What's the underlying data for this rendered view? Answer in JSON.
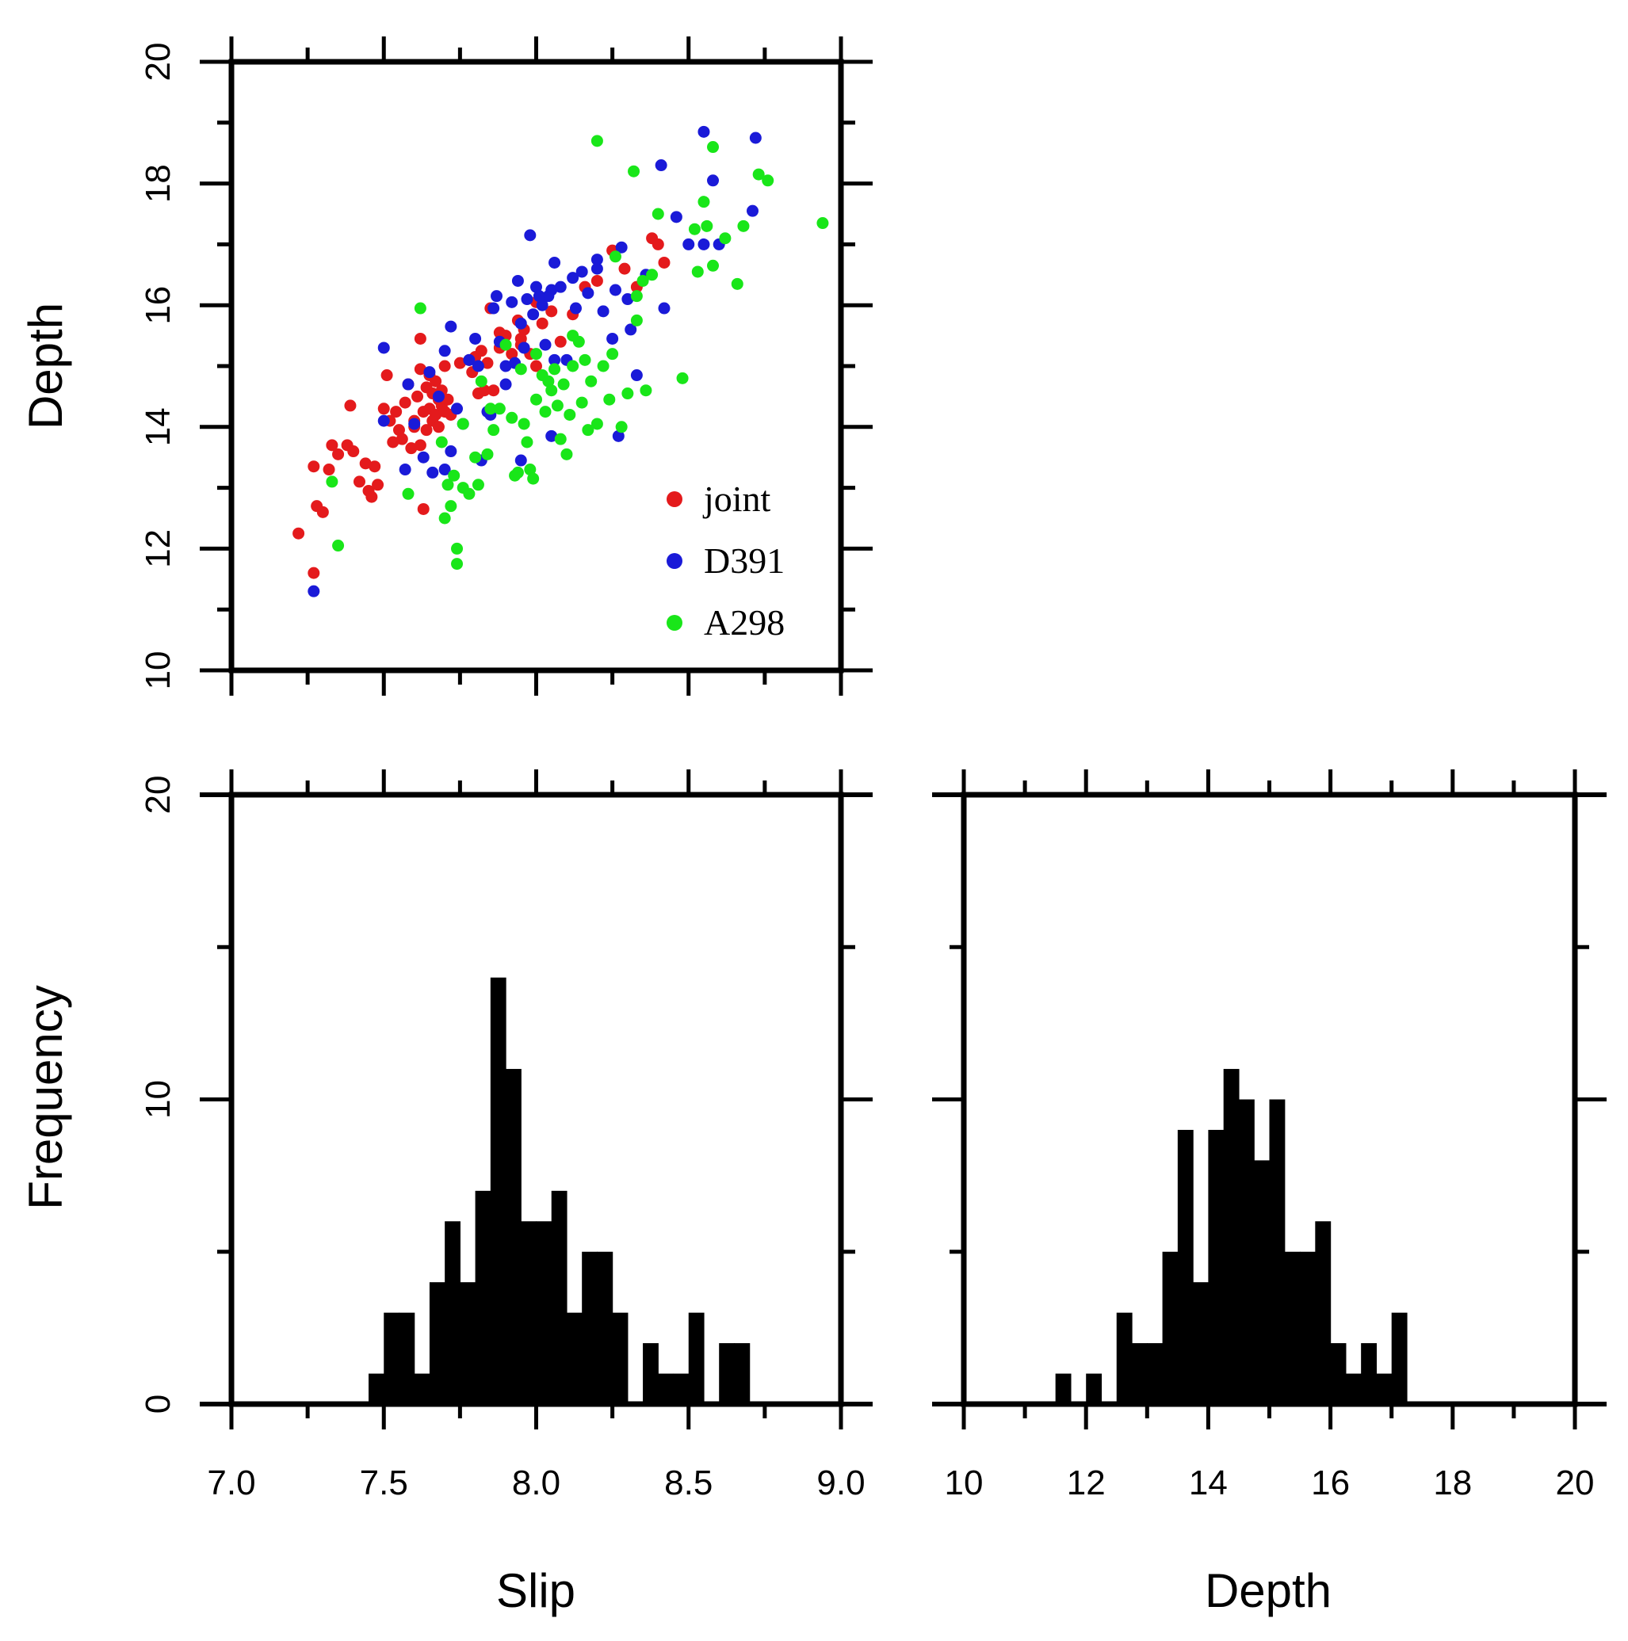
{
  "chart_data": [
    {
      "id": "scatter",
      "type": "scatter",
      "xlim": [
        7.0,
        9.0
      ],
      "ylim": [
        10,
        20
      ],
      "ylabel": "Depth",
      "yticks": [
        10,
        12,
        14,
        16,
        18,
        20
      ],
      "legend": {
        "placement": "bottom-right",
        "entries": [
          "joint",
          "D391",
          "A298"
        ]
      },
      "series": [
        {
          "name": "joint",
          "color": "#e41a1c",
          "points": [
            [
              7.22,
              12.25
            ],
            [
              7.27,
              11.6
            ],
            [
              7.27,
              13.35
            ],
            [
              7.28,
              12.7
            ],
            [
              7.3,
              12.6
            ],
            [
              7.32,
              13.3
            ],
            [
              7.33,
              13.7
            ],
            [
              7.35,
              13.55
            ],
            [
              7.38,
              13.7
            ],
            [
              7.39,
              14.35
            ],
            [
              7.4,
              13.6
            ],
            [
              7.42,
              13.1
            ],
            [
              7.44,
              13.4
            ],
            [
              7.45,
              12.95
            ],
            [
              7.46,
              12.85
            ],
            [
              7.47,
              13.35
            ],
            [
              7.48,
              13.05
            ],
            [
              7.5,
              14.3
            ],
            [
              7.51,
              14.85
            ],
            [
              7.52,
              14.1
            ],
            [
              7.53,
              13.75
            ],
            [
              7.54,
              14.25
            ],
            [
              7.55,
              13.95
            ],
            [
              7.56,
              13.8
            ],
            [
              7.57,
              14.4
            ],
            [
              7.58,
              14.7
            ],
            [
              7.59,
              13.65
            ],
            [
              7.6,
              14.1
            ],
            [
              7.61,
              14.5
            ],
            [
              7.62,
              13.7
            ],
            [
              7.62,
              14.95
            ],
            [
              7.63,
              14.25
            ],
            [
              7.64,
              14.65
            ],
            [
              7.64,
              13.95
            ],
            [
              7.65,
              14.85
            ],
            [
              7.65,
              14.3
            ],
            [
              7.66,
              14.1
            ],
            [
              7.66,
              14.55
            ],
            [
              7.67,
              14.75
            ],
            [
              7.67,
              14.2
            ],
            [
              7.68,
              14.45
            ],
            [
              7.68,
              14.0
            ],
            [
              7.69,
              14.35
            ],
            [
              7.69,
              14.6
            ],
            [
              7.7,
              14.25
            ],
            [
              7.7,
              15.0
            ],
            [
              7.71,
              14.45
            ],
            [
              7.72,
              14.2
            ],
            [
              7.63,
              12.65
            ],
            [
              7.62,
              15.45
            ],
            [
              7.75,
              15.05
            ],
            [
              7.78,
              15.1
            ],
            [
              7.79,
              14.9
            ],
            [
              7.8,
              15.15
            ],
            [
              7.81,
              14.55
            ],
            [
              7.82,
              15.25
            ],
            [
              7.83,
              14.6
            ],
            [
              7.84,
              15.05
            ],
            [
              7.85,
              15.95
            ],
            [
              7.86,
              14.6
            ],
            [
              7.88,
              15.3
            ],
            [
              7.9,
              15.5
            ],
            [
              7.92,
              15.2
            ],
            [
              7.94,
              15.75
            ],
            [
              7.95,
              15.45
            ],
            [
              7.96,
              15.6
            ],
            [
              7.98,
              15.2
            ],
            [
              8.0,
              15.0
            ],
            [
              8.02,
              15.7
            ],
            [
              8.05,
              15.9
            ],
            [
              8.08,
              15.4
            ],
            [
              8.12,
              15.85
            ],
            [
              8.16,
              16.3
            ],
            [
              8.2,
              16.4
            ],
            [
              8.25,
              16.9
            ],
            [
              8.29,
              16.6
            ],
            [
              8.33,
              16.3
            ],
            [
              8.38,
              17.1
            ],
            [
              8.4,
              17.0
            ],
            [
              8.42,
              16.7
            ],
            [
              7.88,
              15.55
            ],
            [
              7.95,
              15.35
            ],
            [
              8.0,
              16.05
            ],
            [
              7.6,
              14.0
            ]
          ]
        },
        {
          "name": "D391",
          "color": "#1a1ad8",
          "points": [
            [
              7.27,
              11.3
            ],
            [
              7.5,
              15.3
            ],
            [
              7.5,
              14.1
            ],
            [
              7.57,
              13.3
            ],
            [
              7.58,
              14.7
            ],
            [
              7.6,
              14.05
            ],
            [
              7.63,
              13.5
            ],
            [
              7.65,
              14.9
            ],
            [
              7.66,
              13.25
            ],
            [
              7.68,
              14.5
            ],
            [
              7.7,
              15.25
            ],
            [
              7.7,
              13.3
            ],
            [
              7.72,
              13.6
            ],
            [
              7.72,
              15.65
            ],
            [
              7.74,
              14.3
            ],
            [
              7.76,
              14.05
            ],
            [
              7.78,
              15.1
            ],
            [
              7.8,
              15.45
            ],
            [
              7.82,
              13.45
            ],
            [
              7.84,
              14.25
            ],
            [
              7.85,
              14.2
            ],
            [
              7.86,
              15.95
            ],
            [
              7.87,
              16.15
            ],
            [
              7.88,
              15.4
            ],
            [
              7.9,
              15.0
            ],
            [
              7.9,
              14.7
            ],
            [
              7.92,
              16.05
            ],
            [
              7.93,
              15.05
            ],
            [
              7.94,
              16.4
            ],
            [
              7.95,
              13.45
            ],
            [
              7.95,
              15.7
            ],
            [
              7.96,
              15.3
            ],
            [
              7.97,
              16.1
            ],
            [
              7.98,
              17.15
            ],
            [
              7.99,
              15.85
            ],
            [
              8.0,
              16.3
            ],
            [
              8.02,
              16.0
            ],
            [
              8.03,
              15.35
            ],
            [
              8.04,
              16.15
            ],
            [
              8.05,
              16.25
            ],
            [
              8.05,
              13.85
            ],
            [
              8.06,
              16.7
            ],
            [
              8.08,
              16.3
            ],
            [
              8.1,
              15.1
            ],
            [
              8.12,
              16.45
            ],
            [
              8.13,
              15.95
            ],
            [
              8.15,
              16.55
            ],
            [
              8.17,
              16.2
            ],
            [
              8.2,
              16.75
            ],
            [
              8.2,
              16.6
            ],
            [
              8.22,
              15.9
            ],
            [
              8.25,
              15.45
            ],
            [
              8.26,
              16.25
            ],
            [
              8.28,
              16.95
            ],
            [
              8.27,
              13.85
            ],
            [
              8.3,
              16.1
            ],
            [
              8.31,
              15.6
            ],
            [
              8.33,
              14.85
            ],
            [
              8.36,
              16.5
            ],
            [
              8.41,
              18.3
            ],
            [
              8.42,
              15.95
            ],
            [
              8.46,
              17.45
            ],
            [
              8.5,
              17.0
            ],
            [
              8.55,
              18.85
            ],
            [
              8.55,
              17.0
            ],
            [
              8.58,
              18.05
            ],
            [
              8.6,
              17.0
            ],
            [
              8.71,
              17.55
            ],
            [
              8.72,
              18.75
            ],
            [
              8.01,
              16.15
            ],
            [
              8.06,
              15.1
            ],
            [
              7.81,
              15.0
            ]
          ]
        },
        {
          "name": "A298",
          "color": "#19e619",
          "points": [
            [
              7.33,
              13.1
            ],
            [
              7.35,
              12.05
            ],
            [
              7.58,
              12.9
            ],
            [
              7.62,
              15.95
            ],
            [
              7.69,
              13.75
            ],
            [
              7.7,
              12.5
            ],
            [
              7.71,
              13.05
            ],
            [
              7.72,
              12.7
            ],
            [
              7.73,
              13.2
            ],
            [
              7.74,
              12.0
            ],
            [
              7.74,
              11.75
            ],
            [
              7.76,
              13.0
            ],
            [
              7.76,
              14.05
            ],
            [
              7.78,
              12.9
            ],
            [
              7.8,
              13.5
            ],
            [
              7.81,
              13.05
            ],
            [
              7.82,
              14.75
            ],
            [
              7.84,
              13.55
            ],
            [
              7.85,
              14.3
            ],
            [
              7.86,
              13.95
            ],
            [
              7.88,
              14.3
            ],
            [
              7.9,
              15.35
            ],
            [
              7.92,
              14.15
            ],
            [
              7.93,
              13.2
            ],
            [
              7.94,
              13.25
            ],
            [
              7.95,
              14.95
            ],
            [
              7.96,
              14.05
            ],
            [
              7.97,
              13.75
            ],
            [
              7.98,
              13.3
            ],
            [
              7.99,
              13.15
            ],
            [
              8.0,
              14.45
            ],
            [
              8.0,
              15.2
            ],
            [
              8.02,
              14.85
            ],
            [
              8.03,
              14.25
            ],
            [
              8.04,
              14.75
            ],
            [
              8.05,
              14.6
            ],
            [
              8.06,
              14.95
            ],
            [
              8.07,
              14.35
            ],
            [
              8.08,
              13.8
            ],
            [
              8.09,
              14.7
            ],
            [
              8.1,
              13.55
            ],
            [
              8.11,
              14.2
            ],
            [
              8.12,
              15.0
            ],
            [
              8.14,
              15.4
            ],
            [
              8.15,
              14.4
            ],
            [
              8.16,
              15.1
            ],
            [
              8.17,
              13.95
            ],
            [
              8.18,
              14.75
            ],
            [
              8.2,
              18.7
            ],
            [
              8.2,
              14.05
            ],
            [
              8.22,
              15.0
            ],
            [
              8.24,
              14.45
            ],
            [
              8.26,
              16.8
            ],
            [
              8.28,
              14.0
            ],
            [
              8.3,
              14.55
            ],
            [
              8.32,
              18.2
            ],
            [
              8.33,
              15.75
            ],
            [
              8.35,
              16.4
            ],
            [
              8.36,
              14.6
            ],
            [
              8.38,
              16.5
            ],
            [
              8.4,
              17.5
            ],
            [
              8.48,
              14.8
            ],
            [
              8.52,
              17.25
            ],
            [
              8.53,
              16.55
            ],
            [
              8.55,
              17.7
            ],
            [
              8.56,
              17.3
            ],
            [
              8.58,
              16.65
            ],
            [
              8.58,
              18.6
            ],
            [
              8.62,
              17.1
            ],
            [
              8.66,
              16.35
            ],
            [
              8.68,
              17.3
            ],
            [
              8.73,
              18.15
            ],
            [
              8.76,
              18.05
            ],
            [
              8.94,
              17.35
            ],
            [
              8.12,
              15.5
            ],
            [
              8.25,
              15.2
            ],
            [
              8.33,
              16.15
            ]
          ]
        }
      ]
    },
    {
      "id": "slip-histogram",
      "type": "bar",
      "xlabel": "Slip",
      "ylabel": "Frequency",
      "xlim": [
        7.0,
        9.0
      ],
      "ylim": [
        0,
        20
      ],
      "xtick_labels": [
        "7.0",
        "7.5",
        "8.0",
        "8.5",
        "9.0"
      ],
      "yticks": [
        0,
        10,
        20
      ],
      "bin_start": 7.45,
      "bin_width": 0.05,
      "values": [
        1,
        3,
        3,
        1,
        4,
        6,
        4,
        7,
        14,
        11,
        6,
        6,
        7,
        3,
        5,
        5,
        3,
        0,
        2,
        1,
        1,
        3,
        0,
        2,
        2
      ]
    },
    {
      "id": "depth-histogram",
      "type": "bar",
      "xlabel": "Depth",
      "xlim": [
        10,
        20
      ],
      "ylim": [
        0,
        20
      ],
      "xtick_labels": [
        "10",
        "12",
        "14",
        "16",
        "18",
        "20"
      ],
      "bin_start": 11.5,
      "bin_width": 0.25,
      "values": [
        1,
        0,
        1,
        0,
        3,
        2,
        2,
        5,
        9,
        4,
        9,
        11,
        10,
        8,
        10,
        5,
        5,
        6,
        2,
        1,
        2,
        1,
        3
      ]
    }
  ]
}
